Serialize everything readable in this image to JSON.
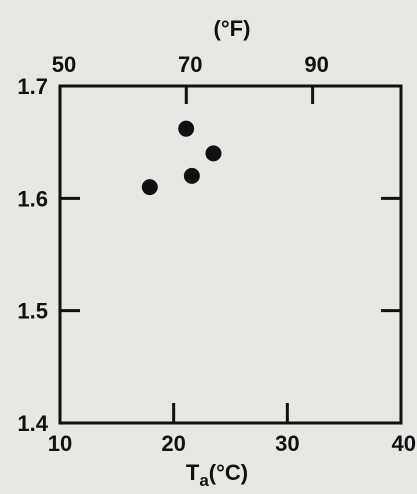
{
  "chart_data": {
    "type": "scatter",
    "title": "",
    "xlabel": {
      "main": "T",
      "subscript": "a",
      "unit": "(°C)"
    },
    "x2label": "(°F)",
    "ylabel": "",
    "xlim": [
      10,
      40
    ],
    "ylim": [
      1.4,
      1.7
    ],
    "x2lim": [
      50,
      104
    ],
    "x_ticks": [
      "10",
      "20",
      "30",
      "40"
    ],
    "x2_ticks": [
      "50",
      "70",
      "90"
    ],
    "y_ticks": [
      "1.4",
      "1.5",
      "1.6",
      "1.7"
    ],
    "grid": false,
    "points": [
      {
        "x": 17.9,
        "y": 1.61
      },
      {
        "x": 21.1,
        "y": 1.662
      },
      {
        "x": 21.6,
        "y": 1.62
      },
      {
        "x": 23.5,
        "y": 1.64
      }
    ],
    "colors": {
      "background": "#e7e8e3",
      "ink": "#111111"
    }
  }
}
